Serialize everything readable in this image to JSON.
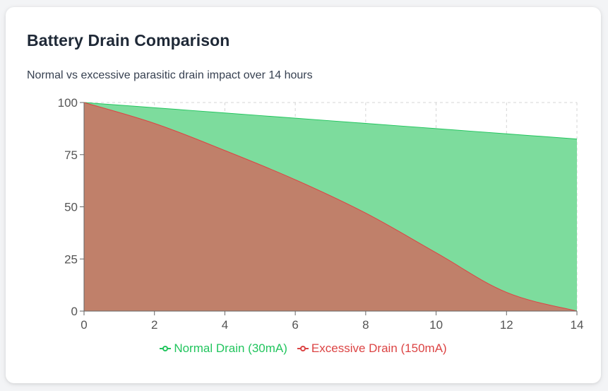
{
  "card": {
    "title": "Battery Drain Comparison",
    "subtitle": "Normal vs excessive parasitic drain impact over 14 hours"
  },
  "chart_data": {
    "type": "area",
    "x": [
      0,
      2,
      4,
      6,
      8,
      10,
      12,
      14
    ],
    "series": [
      {
        "name": "Normal Drain (30mA)",
        "values": [
          100,
          97.5,
          95,
          92.5,
          90,
          87.5,
          85,
          82.5
        ],
        "stroke": "#22c55e",
        "fill": "#7ddc9d"
      },
      {
        "name": "Excessive Drain (150mA)",
        "values": [
          100,
          90,
          77,
          63,
          47,
          28,
          9,
          0
        ],
        "stroke": "#dc4444",
        "fill": "#c0806a"
      }
    ],
    "xticks": [
      0,
      2,
      4,
      6,
      8,
      10,
      12,
      14
    ],
    "yticks": [
      0,
      25,
      50,
      75,
      100
    ],
    "xlim": [
      0,
      14
    ],
    "ylim": [
      0,
      100
    ],
    "grid": true,
    "legend": "bottom-center",
    "title": "",
    "xlabel": "",
    "ylabel": ""
  }
}
